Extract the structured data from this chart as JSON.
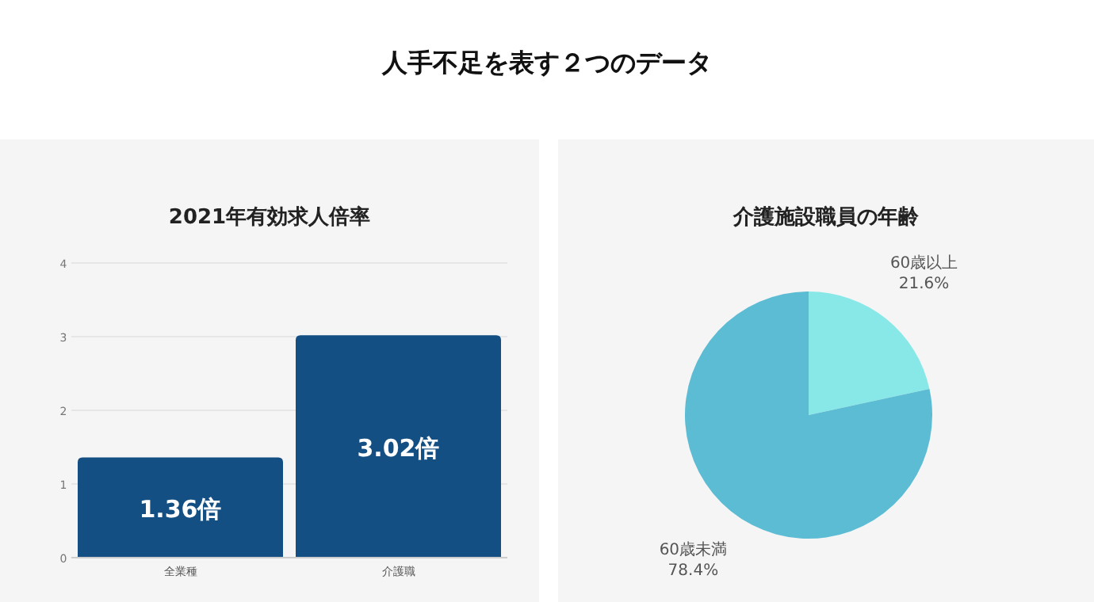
{
  "chart_data": [
    {
      "type": "bar",
      "title": "2021年有効求人倍率",
      "annotations": [
        "人手不足を表す２つのデータ"
      ],
      "categories": [
        "全業種",
        "介護職"
      ],
      "values": [
        1.36,
        3.02
      ],
      "value_labels": [
        "1.36倍",
        "3.02倍"
      ],
      "color": "#134f82",
      "ylim": [
        0,
        4
      ],
      "yticks": [
        0,
        1,
        2,
        3,
        4
      ],
      "grid": "y"
    },
    {
      "type": "pie",
      "title": "介護施設職員の年齢",
      "categories": [
        "60歳以上",
        "60歳未満"
      ],
      "values": [
        21.6,
        78.4
      ],
      "value_labels": [
        "21.6%",
        "78.4%"
      ],
      "colors": [
        "#88e8e8",
        "#5bbcd3"
      ]
    }
  ]
}
